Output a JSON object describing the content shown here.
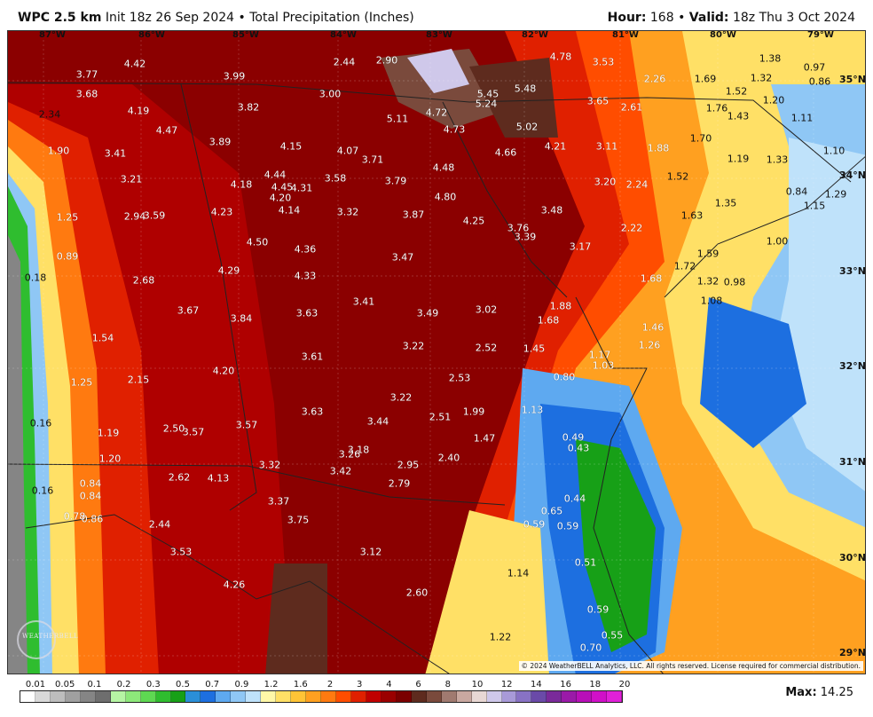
{
  "header": {
    "model": "WPC 2.5 km",
    "init_text": "Init 18z 26 Sep 2024",
    "separator": "•",
    "product": "Total Precipitation (Inches)",
    "hour_label": "Hour:",
    "hour_value": "168",
    "valid_label": "Valid:",
    "valid_value": "18z Thu 3 Oct 2024"
  },
  "longitude_labels": [
    "87°W",
    "86°W",
    "85°W",
    "84°W",
    "83°W",
    "82°W",
    "81°W",
    "80°W",
    "79°W"
  ],
  "latitude_labels": [
    "35°N",
    "34°N",
    "33°N",
    "32°N",
    "31°N",
    "30°N",
    "29°N"
  ],
  "precip_values": [
    "3.77",
    "4.42",
    "3.99",
    "2.44",
    "2.90",
    "4.78",
    "3.53",
    "3.68",
    "3.00",
    "5.45",
    "5.48",
    "2.26",
    "1.69",
    "1.38",
    "0.97",
    "0.86",
    "1.52",
    "1.32",
    "2.34",
    "4.19",
    "3.82",
    "5.24",
    "3.65",
    "2.61",
    "1.76",
    "1.43",
    "1.20",
    "1.11",
    "4.47",
    "5.11",
    "4.72",
    "4.73",
    "5.02",
    "3.89",
    "4.15",
    "4.07",
    "3.71",
    "4.66",
    "4.21",
    "3.11",
    "1.88",
    "1.70",
    "1.90",
    "3.41",
    "4.48",
    "1.19",
    "1.33",
    "1.10",
    "3.21",
    "4.18",
    "4.44",
    "4.45",
    "4.31",
    "3.58",
    "3.79",
    "4.80",
    "3.20",
    "2.24",
    "1.52",
    "0.84",
    "1.29",
    "4.20",
    "1.25",
    "2.94",
    "3.59",
    "4.23",
    "4.14",
    "3.32",
    "3.87",
    "4.25",
    "3.48",
    "1.35",
    "1.15",
    "3.76",
    "1.63",
    "3.39",
    "2.22",
    "1.00",
    "4.50",
    "4.36",
    "3.17",
    "0.89",
    "3.47",
    "1.59",
    "1.72",
    "0.18",
    "2.68",
    "4.29",
    "4.33",
    "1.68",
    "1.32",
    "0.98",
    "1.08",
    "3.67",
    "3.84",
    "3.63",
    "3.41",
    "3.49",
    "3.02",
    "1.88",
    "1.68",
    "1.46",
    "1.54",
    "2.52",
    "1.45",
    "1.17",
    "1.26",
    "1.03",
    "3.61",
    "3.22",
    "4.20",
    "1.25",
    "2.15",
    "2.53",
    "0.80",
    "3.22",
    "3.63",
    "1.99",
    "1.13",
    "0.16",
    "3.44",
    "2.51",
    "2.50",
    "3.57",
    "1.19",
    "3.57",
    "1.47",
    "0.49",
    "0.43",
    "3.18",
    "1.20",
    "3.26",
    "3.32",
    "2.40",
    "2.95",
    "3.42",
    "2.62",
    "4.13",
    "2.79",
    "0.16",
    "0.84",
    "0.84",
    "0.44",
    "3.37",
    "0.65",
    "0.59",
    "0.86",
    "0.78",
    "0.59",
    "2.44",
    "3.75",
    "3.53",
    "3.12",
    "0.51",
    "1.14",
    "4.26",
    "2.60",
    "0.59",
    "1.22",
    "0.55",
    "0.70"
  ],
  "legend": {
    "labels": [
      "0.01",
      "0.05",
      "0.1",
      "0.2",
      "0.3",
      "0.5",
      "0.7",
      "0.9",
      "1.2",
      "1.6",
      "2",
      "3",
      "4",
      "6",
      "8",
      "10",
      "12",
      "14",
      "16",
      "18",
      "20"
    ],
    "colors": [
      "#ffffff",
      "#d9d9d9",
      "#bdbdbd",
      "#a0a0a0",
      "#858585",
      "#6e6e6e",
      "#b6f5a4",
      "#8de87a",
      "#5ed852",
      "#2fbd2f",
      "#17a017",
      "#2a8fd8",
      "#1d6fe0",
      "#5ea9f0",
      "#8fc7f5",
      "#bfe2fa",
      "#fff7a8",
      "#ffe066",
      "#ffc436",
      "#ffa020",
      "#ff7a10",
      "#ff4d00",
      "#e02000",
      "#c00000",
      "#9a0000",
      "#7a0000",
      "#5e2b1e",
      "#7a4a3c",
      "#a07a70",
      "#c9a8a0",
      "#e8d8d4",
      "#cfc8ea",
      "#a89ad8",
      "#8872c4",
      "#6a4aa8",
      "#7a2a9a",
      "#9a1aa8",
      "#b80fb8",
      "#d010c8",
      "#e020d8"
    ]
  },
  "max": {
    "label": "Max:",
    "value": "14.25"
  },
  "copyright": "© 2024 WeatherBELL Analytics, LLC. All rights reserved. License required for commercial distribution.",
  "logo_text": "WEATHERBELL"
}
